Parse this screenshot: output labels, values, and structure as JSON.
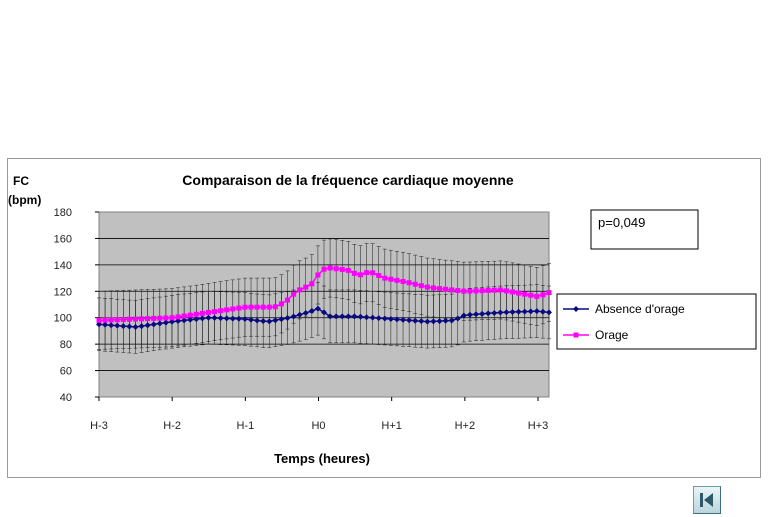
{
  "chart_data": {
    "type": "line",
    "title": "Comparaison de la fréquence cardiaque moyenne",
    "ylabel": [
      "FC",
      "(bpm)"
    ],
    "xlabel": "Temps (heures)",
    "ylim": [
      40,
      180
    ],
    "yticks": [
      40,
      60,
      80,
      100,
      120,
      140,
      160,
      180
    ],
    "xlim": [
      -3,
      3.15
    ],
    "xticks": [
      {
        "label": "H-3",
        "value": -3
      },
      {
        "label": "H-2",
        "value": -2
      },
      {
        "label": "H-1",
        "value": -1
      },
      {
        "label": "H0",
        "value": 0
      },
      {
        "label": "H+1",
        "value": 1
      },
      {
        "label": "H+2",
        "value": 2
      },
      {
        "label": "H+3",
        "value": 3
      }
    ],
    "grid": "horizontal",
    "plot_background": "#c0c0c0",
    "legend_position": "right",
    "annotation": "p=0,049",
    "series": [
      {
        "name": "Absence d'orage",
        "color": "#0a0a80",
        "marker": "diamond",
        "error_bar_sd": 20,
        "points": [
          [
            -3,
            95
          ],
          [
            -2.5,
            93
          ],
          [
            -2,
            97
          ],
          [
            -1.5,
            100
          ],
          [
            -1,
            99
          ],
          [
            -0.7,
            97
          ],
          [
            -0.4,
            100
          ],
          [
            -0.15,
            104
          ],
          [
            0,
            107
          ],
          [
            0.15,
            101
          ],
          [
            0.5,
            101
          ],
          [
            1,
            99
          ],
          [
            1.5,
            97
          ],
          [
            1.85,
            98
          ],
          [
            2,
            102
          ],
          [
            2.5,
            104
          ],
          [
            3,
            105
          ],
          [
            3.15,
            104
          ]
        ]
      },
      {
        "name": "Orage",
        "color": "#ff00ff",
        "marker": "square",
        "error_bar_sd": 22,
        "points": [
          [
            -3,
            98
          ],
          [
            -2.5,
            99
          ],
          [
            -2,
            100
          ],
          [
            -1.5,
            104
          ],
          [
            -1,
            108
          ],
          [
            -0.6,
            108
          ],
          [
            -0.45,
            112
          ],
          [
            -0.3,
            120
          ],
          [
            -0.1,
            125
          ],
          [
            0,
            133
          ],
          [
            0.1,
            138
          ],
          [
            0.4,
            136
          ],
          [
            0.55,
            132
          ],
          [
            0.7,
            135
          ],
          [
            0.9,
            130
          ],
          [
            1.2,
            127
          ],
          [
            1.5,
            123
          ],
          [
            2,
            120
          ],
          [
            2.5,
            121
          ],
          [
            2.8,
            118
          ],
          [
            3,
            116
          ],
          [
            3.15,
            119
          ]
        ]
      }
    ]
  },
  "nav": {
    "icon": "skip-back-icon"
  }
}
